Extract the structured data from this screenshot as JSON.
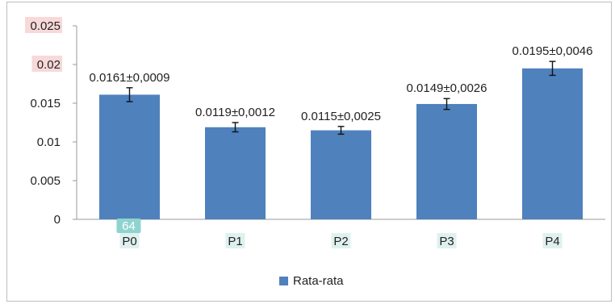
{
  "chart_data": {
    "type": "bar",
    "categories": [
      "P0",
      "P1",
      "P2",
      "P3",
      "P4"
    ],
    "series": [
      {
        "name": "Rata-rata",
        "values": [
          0.0161,
          0.0119,
          0.0115,
          0.0149,
          0.0195
        ],
        "errors": [
          0.0009,
          0.0012,
          0.0025,
          0.0026,
          0.0046
        ],
        "color": "#4f81bd"
      }
    ],
    "data_labels": [
      "0.0161±0,0009",
      "0.0119±0,0012",
      "0.0115±0,0025",
      "0.0149±0,0026",
      "0.0195±0,0046"
    ],
    "yticks": [
      "0",
      "0.005",
      "0.01",
      "0.015",
      "0.02",
      "0.025"
    ],
    "ylim": [
      0,
      0.025
    ],
    "grid": false,
    "legend": "bottom",
    "annotation": "64",
    "highlight_colors": {
      "red": "#f7d9d9",
      "teal": "#dff1ef",
      "annotation_badge": "#8fd3cf"
    }
  }
}
